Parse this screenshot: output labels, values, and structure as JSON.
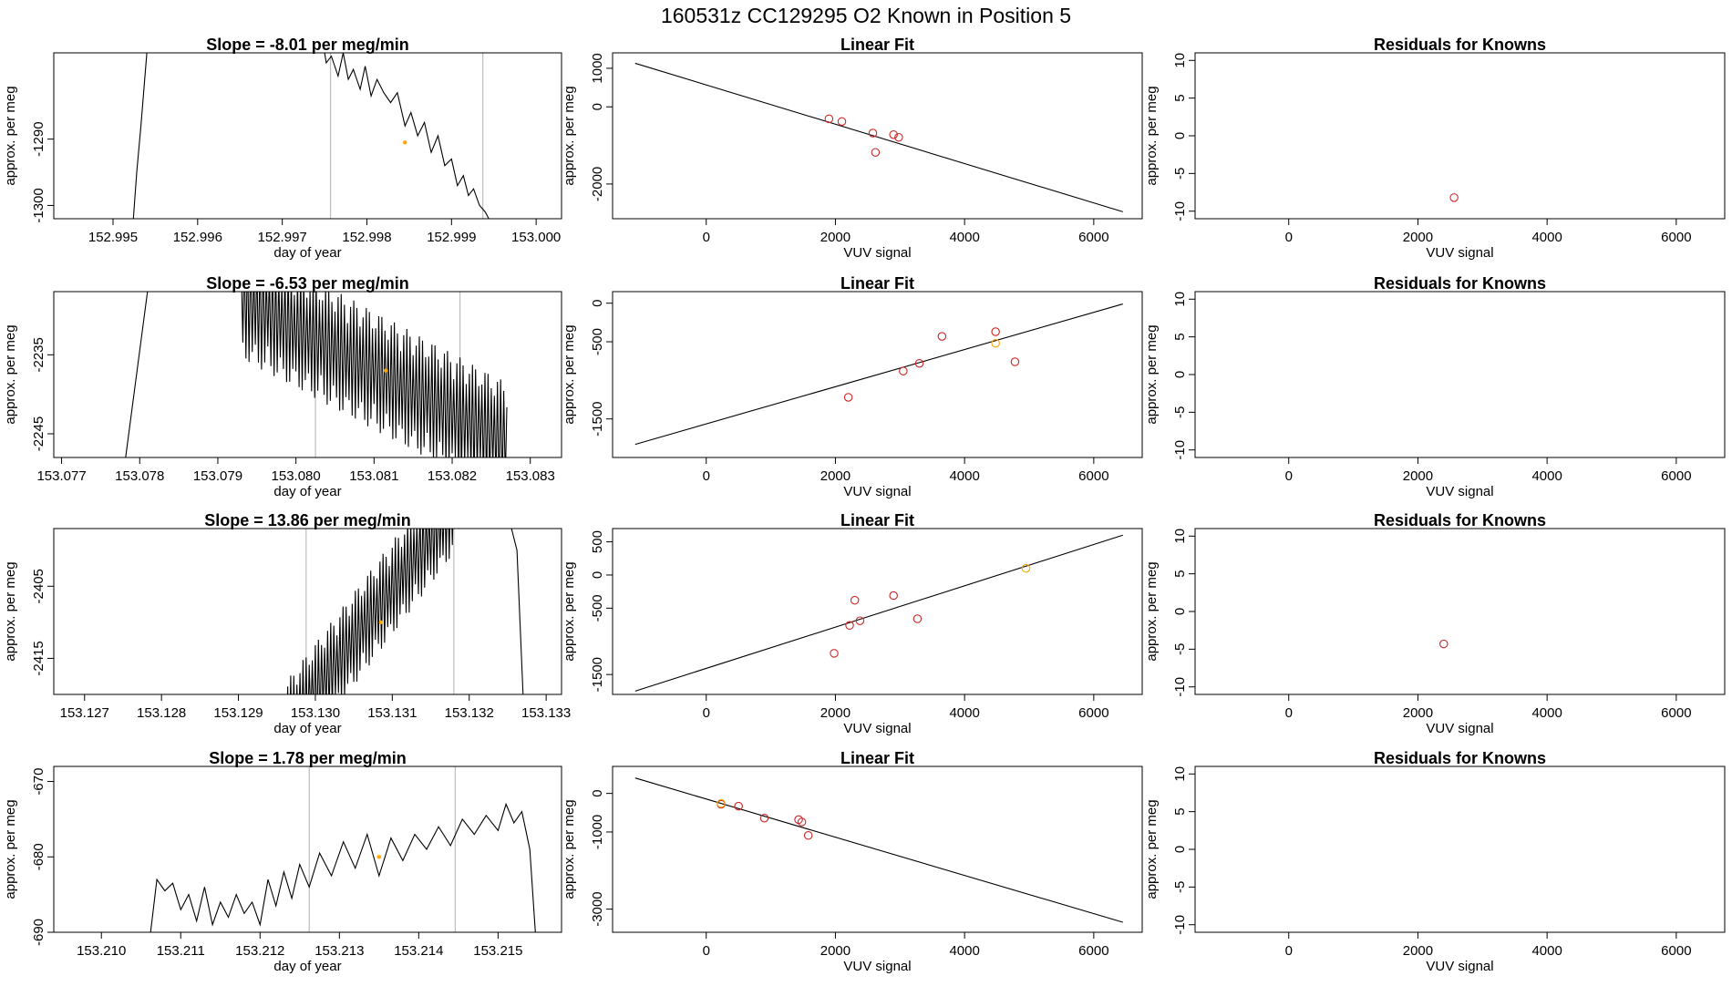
{
  "title": "160531z      CC129295   O2 Known in Position  5",
  "colors": {
    "known": "#cd2626",
    "highlight": "#ffa500",
    "guide": "#bdbdbd",
    "line": "#000000"
  },
  "rows": [
    {
      "slope_title": "Slope =  -8.01  per meg/min",
      "fit_title": "Linear Fit",
      "resid_title": "Residuals for Knowns"
    },
    {
      "slope_title": "Slope =  -6.53  per meg/min",
      "fit_title": "Linear Fit",
      "resid_title": "Residuals for Knowns"
    },
    {
      "slope_title": "Slope =  13.86  per meg/min",
      "fit_title": "Linear Fit",
      "resid_title": "Residuals for Knowns"
    },
    {
      "slope_title": "Slope =  1.78  per meg/min",
      "fit_title": "Linear Fit",
      "resid_title": "Residuals for Knowns"
    }
  ],
  "chart_data": [
    {
      "panel": "row1-time-trace",
      "type": "line",
      "title": "Slope =  -8.01  per meg/min",
      "xlabel": "day of year",
      "ylabel": "approx. per meg",
      "xlim": [
        152.9943,
        153.0003
      ],
      "ylim": [
        -1302,
        -1277
      ],
      "xticks": [
        "152.995",
        "152.996",
        "152.997",
        "152.998",
        "152.999",
        "153.000"
      ],
      "yticks": [
        "-1300",
        "-1290"
      ],
      "x_range": [
        152.9952,
        152.9994
      ],
      "guide_lines": [
        152.99757,
        152.99937
      ],
      "trace_points": [
        [
          152.99524,
          -1302
        ],
        [
          152.99528,
          -1295
        ],
        [
          152.99533,
          -1288
        ],
        [
          152.9954,
          -1277
        ],
        [
          152.9975,
          -1277
        ],
        [
          152.99752,
          -1278.5
        ],
        [
          152.99758,
          -1277.5
        ],
        [
          152.99766,
          -1280.5
        ],
        [
          152.99772,
          -1277
        ],
        [
          152.99778,
          -1281
        ],
        [
          152.99784,
          -1279.5
        ],
        [
          152.99792,
          -1282.5
        ],
        [
          152.99798,
          -1279
        ],
        [
          152.99805,
          -1283.5
        ],
        [
          152.99812,
          -1281
        ],
        [
          152.9982,
          -1283
        ],
        [
          152.99828,
          -1284.5
        ],
        [
          152.99836,
          -1283
        ],
        [
          152.99845,
          -1288
        ],
        [
          152.99852,
          -1286
        ],
        [
          152.9986,
          -1289.5
        ],
        [
          152.99868,
          -1287.5
        ],
        [
          152.99876,
          -1292
        ],
        [
          152.99884,
          -1289.5
        ],
        [
          152.99892,
          -1294
        ],
        [
          152.999,
          -1293
        ],
        [
          152.99907,
          -1297
        ],
        [
          152.99914,
          -1295.5
        ],
        [
          152.9992,
          -1298.5
        ],
        [
          152.99926,
          -1297.5
        ],
        [
          152.99933,
          -1300
        ],
        [
          152.9994,
          -1301
        ],
        [
          152.99944,
          -1302
        ]
      ],
      "highlight_point": [
        152.99845,
        -1290.5
      ]
    },
    {
      "panel": "row1-linear-fit",
      "type": "scatter",
      "title": "Linear Fit",
      "xlabel": "VUV signal",
      "ylabel": "approx. per meg",
      "xlim": [
        -1450,
        6750
      ],
      "ylim": [
        -2900,
        1400
      ],
      "xticks": [
        "0",
        "2000",
        "4000",
        "6000"
      ],
      "yticks": [
        "-2000",
        "0",
        "1000"
      ],
      "fit_line": [
        [
          -1100,
          1130
        ],
        [
          6450,
          -2720
        ]
      ],
      "points": [
        [
          1900,
          -310
        ],
        [
          2100,
          -380
        ],
        [
          2580,
          -680
        ],
        [
          2620,
          -1180
        ],
        [
          2900,
          -720
        ],
        [
          2980,
          -790
        ]
      ],
      "highlight_points": []
    },
    {
      "panel": "row1-residuals",
      "type": "scatter",
      "title": "Residuals for Knowns",
      "xlabel": "VUV signal",
      "ylabel": "approx. per meg",
      "xlim": [
        -1450,
        6750
      ],
      "ylim": [
        -11,
        11
      ],
      "xticks": [
        "0",
        "2000",
        "4000",
        "6000"
      ],
      "yticks": [
        "-10",
        "-5",
        "0",
        "5",
        "10"
      ],
      "points": [
        [
          2560,
          -8.2
        ]
      ]
    },
    {
      "panel": "row2-time-trace",
      "type": "line",
      "title": "Slope =  -6.53  per meg/min",
      "xlabel": "day of year",
      "ylabel": "approx. per meg",
      "xlim": [
        153.0769,
        153.0834
      ],
      "ylim": [
        -2248,
        -2227
      ],
      "xticks": [
        "153.077",
        "153.078",
        "153.079",
        "153.080",
        "153.081",
        "153.082",
        "153.083"
      ],
      "yticks": [
        "-2245",
        "-2235"
      ],
      "x_range": [
        153.0778,
        153.0827
      ],
      "guide_lines": [
        153.08025,
        153.0821
      ],
      "trace_start": [
        153.07782,
        -2248
      ],
      "trace_rise_to": [
        153.0781,
        -2227
      ],
      "oscillation": {
        "x_from": 153.0793,
        "x_to": 153.0827,
        "y_center_from": -2228,
        "y_center_to": -2246,
        "amplitude": 7.5,
        "period": 4e-05
      },
      "highlight_point": [
        153.08115,
        -2237
      ]
    },
    {
      "panel": "row2-linear-fit",
      "type": "scatter",
      "title": "Linear Fit",
      "xlabel": "VUV signal",
      "ylabel": "approx. per meg",
      "xlim": [
        -1450,
        6750
      ],
      "ylim": [
        -2000,
        150
      ],
      "xticks": [
        "0",
        "2000",
        "4000",
        "6000"
      ],
      "yticks": [
        "-1500",
        "-500",
        "0"
      ],
      "fit_line": [
        [
          -1100,
          -1830
        ],
        [
          6450,
          -10
        ]
      ],
      "points": [
        [
          2200,
          -1220
        ],
        [
          3050,
          -880
        ],
        [
          3300,
          -780
        ],
        [
          3650,
          -430
        ],
        [
          4480,
          -370
        ],
        [
          4780,
          -760
        ]
      ],
      "highlight_points": [
        [
          4480,
          -520
        ]
      ]
    },
    {
      "panel": "row2-residuals",
      "type": "scatter",
      "title": "Residuals for Knowns",
      "xlabel": "VUV signal",
      "ylabel": "approx. per meg",
      "xlim": [
        -1450,
        6750
      ],
      "ylim": [
        -11,
        11
      ],
      "xticks": [
        "0",
        "2000",
        "4000",
        "6000"
      ],
      "yticks": [
        "-10",
        "-5",
        "0",
        "5",
        "10"
      ],
      "points": []
    },
    {
      "panel": "row3-time-trace",
      "type": "line",
      "title": "Slope =  13.86  per meg/min",
      "xlabel": "day of year",
      "ylabel": "approx. per meg",
      "xlim": [
        153.1266,
        153.1332
      ],
      "ylim": [
        -2420,
        -2397
      ],
      "xticks": [
        "153.127",
        "153.128",
        "153.129",
        "153.130",
        "153.131",
        "153.132",
        "153.133"
      ],
      "yticks": [
        "-2415",
        "-2405"
      ],
      "x_range": [
        153.1296,
        153.1327
      ],
      "guide_lines": [
        153.12988,
        153.1318
      ],
      "oscillation": {
        "x_from": 153.1296,
        "x_to": 153.1318,
        "y_center_from": -2425,
        "y_center_to": -2394,
        "amplitude": 6.5,
        "period": 4e-05
      },
      "tail": [
        [
          153.1318,
          -2397
        ],
        [
          153.13255,
          -2397
        ],
        [
          153.13262,
          -2400
        ],
        [
          153.1327,
          -2420
        ]
      ],
      "highlight_point": [
        153.13085,
        -2410
      ]
    },
    {
      "panel": "row3-linear-fit",
      "type": "scatter",
      "title": "Linear Fit",
      "xlabel": "VUV signal",
      "ylabel": "approx. per meg",
      "xlim": [
        -1450,
        6750
      ],
      "ylim": [
        -1800,
        700
      ],
      "xticks": [
        "0",
        "2000",
        "4000",
        "6000"
      ],
      "yticks": [
        "-1500",
        "-500",
        "0",
        "500"
      ],
      "fit_line": [
        [
          -1100,
          -1750
        ],
        [
          6450,
          600
        ]
      ],
      "points": [
        [
          1980,
          -1180
        ],
        [
          2220,
          -760
        ],
        [
          2300,
          -380
        ],
        [
          2380,
          -690
        ],
        [
          2900,
          -310
        ],
        [
          3270,
          -660
        ]
      ],
      "highlight_points": [
        [
          4950,
          100
        ]
      ]
    },
    {
      "panel": "row3-residuals",
      "type": "scatter",
      "title": "Residuals for Knowns",
      "xlabel": "VUV signal",
      "ylabel": "approx. per meg",
      "xlim": [
        -1450,
        6750
      ],
      "ylim": [
        -11,
        11
      ],
      "xticks": [
        "0",
        "2000",
        "4000",
        "6000"
      ],
      "yticks": [
        "-10",
        "-5",
        "0",
        "5",
        "10"
      ],
      "points": [
        [
          2400,
          -4.3
        ]
      ]
    },
    {
      "panel": "row4-time-trace",
      "type": "line",
      "title": "Slope =  1.78  per meg/min",
      "xlabel": "day of year",
      "ylabel": "approx. per meg",
      "xlim": [
        153.2094,
        153.2158
      ],
      "ylim": [
        -690,
        -668
      ],
      "xticks": [
        "153.210",
        "153.211",
        "153.212",
        "153.213",
        "153.214",
        "153.215"
      ],
      "yticks": [
        "-690",
        "-680",
        "-670"
      ],
      "x_range": [
        153.2105,
        153.2154
      ],
      "guide_lines": [
        153.21262,
        153.21446
      ],
      "trace_points": [
        [
          153.21053,
          -690
        ],
        [
          153.21062,
          -690
        ],
        [
          153.2107,
          -683
        ],
        [
          153.2108,
          -684.5
        ],
        [
          153.2109,
          -683.5
        ],
        [
          153.211,
          -687
        ],
        [
          153.2111,
          -685
        ],
        [
          153.2112,
          -688.5
        ],
        [
          153.2113,
          -684
        ],
        [
          153.2114,
          -689
        ],
        [
          153.2115,
          -686
        ],
        [
          153.2116,
          -688
        ],
        [
          153.2117,
          -685
        ],
        [
          153.2118,
          -687.5
        ],
        [
          153.2119,
          -686
        ],
        [
          153.212,
          -689
        ],
        [
          153.2121,
          -683
        ],
        [
          153.2122,
          -686.5
        ],
        [
          153.2123,
          -682
        ],
        [
          153.2124,
          -685.5
        ],
        [
          153.2125,
          -681
        ],
        [
          153.21262,
          -684
        ],
        [
          153.21275,
          -679.5
        ],
        [
          153.2129,
          -682.5
        ],
        [
          153.21305,
          -678
        ],
        [
          153.2132,
          -681.5
        ],
        [
          153.21335,
          -677
        ],
        [
          153.2135,
          -682.5
        ],
        [
          153.21365,
          -677.5
        ],
        [
          153.2138,
          -680.5
        ],
        [
          153.21395,
          -677
        ],
        [
          153.2141,
          -679
        ],
        [
          153.21425,
          -676
        ],
        [
          153.2144,
          -678.5
        ],
        [
          153.21455,
          -675
        ],
        [
          153.2147,
          -677
        ],
        [
          153.21485,
          -674.5
        ],
        [
          153.215,
          -676.5
        ],
        [
          153.2151,
          -673
        ],
        [
          153.2152,
          -675.5
        ],
        [
          153.2153,
          -674
        ],
        [
          153.2154,
          -679
        ],
        [
          153.21547,
          -690
        ]
      ],
      "highlight_point": [
        153.2135,
        -680
      ]
    },
    {
      "panel": "row4-linear-fit",
      "type": "scatter",
      "title": "Linear Fit",
      "xlabel": "VUV signal",
      "ylabel": "approx. per meg",
      "xlim": [
        -1450,
        6750
      ],
      "ylim": [
        -3600,
        700
      ],
      "xticks": [
        "0",
        "2000",
        "4000",
        "6000"
      ],
      "yticks": [
        "-3000",
        "-1000",
        "0"
      ],
      "fit_line": [
        [
          -1100,
          400
        ],
        [
          6450,
          -3340
        ]
      ],
      "points": [
        [
          230,
          -280
        ],
        [
          500,
          -330
        ],
        [
          900,
          -640
        ],
        [
          1430,
          -680
        ],
        [
          1480,
          -740
        ],
        [
          1580,
          -1090
        ]
      ],
      "highlight_points": [
        [
          230,
          -260
        ]
      ]
    },
    {
      "panel": "row4-residuals",
      "type": "scatter",
      "title": "Residuals for Knowns",
      "xlabel": "VUV signal",
      "ylabel": "approx. per meg",
      "xlim": [
        -1450,
        6750
      ],
      "ylim": [
        -11,
        11
      ],
      "xticks": [
        "0",
        "2000",
        "4000",
        "6000"
      ],
      "yticks": [
        "-10",
        "-5",
        "0",
        "5",
        "10"
      ],
      "points": []
    }
  ]
}
